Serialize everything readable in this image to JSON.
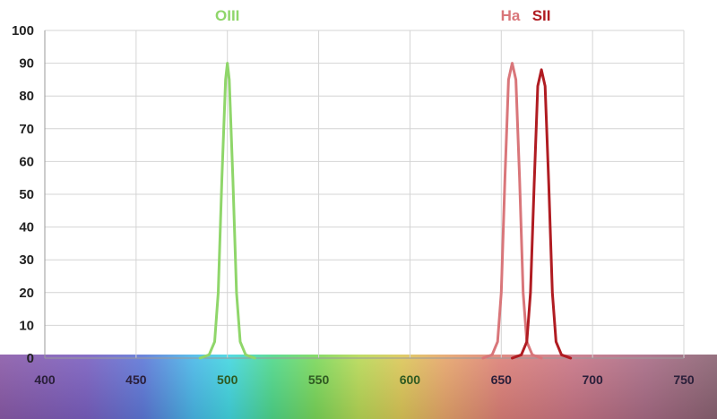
{
  "chart_data": {
    "type": "line",
    "xlim": [
      400,
      750
    ],
    "ylim": [
      0,
      100
    ],
    "x_ticks": [
      "400",
      "450",
      "500",
      "550",
      "600",
      "650",
      "700",
      "750"
    ],
    "y_ticks": [
      "0",
      "10",
      "20",
      "30",
      "40",
      "50",
      "60",
      "70",
      "80",
      "90",
      "100"
    ],
    "grid": true,
    "x_axis_background": "visible light spectrum gradient",
    "series": [
      {
        "name": "OIII",
        "color": "#8fd66a",
        "x": [
          485,
          490,
          493,
          495,
          497,
          499,
          500,
          501,
          503,
          505,
          507,
          510,
          515
        ],
        "y": [
          0,
          1,
          5,
          20,
          55,
          85,
          90,
          85,
          55,
          20,
          5,
          1,
          0
        ]
      },
      {
        "name": "Ha",
        "color": "#d9767a",
        "x": [
          640,
          645,
          648,
          650,
          652,
          654,
          656,
          658,
          660,
          662,
          664,
          667,
          672
        ],
        "y": [
          0,
          1,
          5,
          20,
          55,
          85,
          90,
          85,
          55,
          20,
          5,
          1,
          0
        ]
      },
      {
        "name": "SII",
        "color": "#b01c22",
        "x": [
          656,
          661,
          664,
          666,
          668,
          670,
          672,
          674,
          676,
          678,
          680,
          683,
          688
        ],
        "y": [
          0,
          1,
          5,
          20,
          53,
          83,
          88,
          83,
          53,
          20,
          5,
          1,
          0
        ]
      }
    ]
  }
}
